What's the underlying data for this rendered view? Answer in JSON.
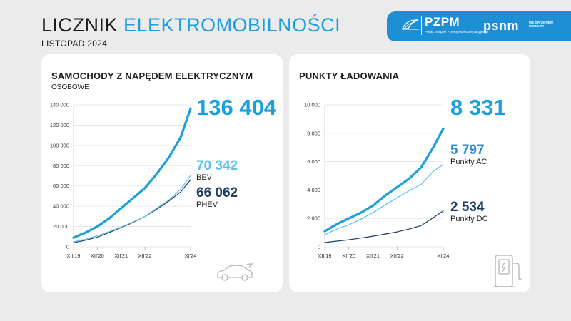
{
  "header": {
    "title_part1": "LICZNIK",
    "title_part2": "ELEKTROMOBILNOŚCI",
    "subtitle": "LISTOPAD 2024"
  },
  "logos": {
    "pzpm": {
      "name": "PZPM",
      "tagline": "Polski Związek Przemysłu Motoryzacyjnego"
    },
    "psnm": {
      "name": "psnm",
      "tagline": "WE DRIVE NEW MOBILITY"
    }
  },
  "colors": {
    "accent": "#1a9fde",
    "light": "#5cc2ec",
    "dark": "#1f3c66",
    "banner": "#1d8fd4"
  },
  "left_card": {
    "title": "SAMOCHODY Z NAPĘDEM ELEKTRYCZNYM",
    "subtitle": "OSOBOWE",
    "total_value": "136 404",
    "bev_value": "70 342",
    "bev_label": "BEV",
    "phev_value": "66 062",
    "phev_label": "PHEV",
    "icon": "electric-car-icon"
  },
  "right_card": {
    "title": "PUNKTY ŁADOWANIA",
    "total_value": "8 331",
    "ac_value": "5 797",
    "ac_label": "Punkty AC",
    "dc_value": "2 534",
    "dc_label": "Punkty DC",
    "icon": "charging-station-icon"
  },
  "chart_data": [
    {
      "type": "line",
      "title": "SAMOCHODY Z NAPĘDEM ELEKTRYCZNYM",
      "subtitle": "OSOBOWE",
      "ylim": [
        0,
        140000
      ],
      "yticks": [
        0,
        20000,
        40000,
        60000,
        80000,
        100000,
        120000,
        140000
      ],
      "ytick_labels": [
        "0",
        "20 000",
        "40 000",
        "60 000",
        "80 000",
        "100 000",
        "120 000",
        "140 000"
      ],
      "xticks": [
        0,
        12,
        24,
        36,
        59
      ],
      "xtick_labels": [
        "XII'19",
        "XII'20",
        "XII'21",
        "XII'22",
        "XI'24"
      ],
      "grid": true,
      "series": [
        {
          "name": "",
          "color": "#1a9fde",
          "width": 3.2,
          "points": [
            [
              0,
              9000
            ],
            [
              6,
              14000
            ],
            [
              12,
              20000
            ],
            [
              18,
              28000
            ],
            [
              24,
              38000
            ],
            [
              30,
              48000
            ],
            [
              36,
              58000
            ],
            [
              42,
              72000
            ],
            [
              48,
              88000
            ],
            [
              54,
              108000
            ],
            [
              59,
              136404
            ]
          ]
        },
        {
          "name": "BEV",
          "color": "#5cc2ec",
          "width": 1.2,
          "points": [
            [
              0,
              5000
            ],
            [
              6,
              7500
            ],
            [
              12,
              11000
            ],
            [
              18,
              15000
            ],
            [
              24,
              19500
            ],
            [
              30,
              24500
            ],
            [
              36,
              30000
            ],
            [
              42,
              38000
            ],
            [
              48,
              46000
            ],
            [
              54,
              57000
            ],
            [
              59,
              70342
            ]
          ]
        },
        {
          "name": "PHEV",
          "color": "#1f3c66",
          "width": 1.2,
          "points": [
            [
              0,
              4000
            ],
            [
              6,
              6500
            ],
            [
              12,
              9500
            ],
            [
              18,
              14000
            ],
            [
              24,
              19000
            ],
            [
              30,
              24000
            ],
            [
              36,
              30000
            ],
            [
              42,
              37000
            ],
            [
              48,
              45000
            ],
            [
              54,
              54000
            ],
            [
              59,
              66062
            ]
          ]
        }
      ]
    },
    {
      "type": "line",
      "title": "PUNKTY ŁADOWANIA",
      "ylim": [
        0,
        10000
      ],
      "yticks": [
        0,
        2000,
        4000,
        6000,
        8000,
        10000
      ],
      "ytick_labels": [
        "0",
        "2 000",
        "4 000",
        "6 000",
        "8 000",
        "10 000"
      ],
      "xticks": [
        0,
        12,
        24,
        36,
        59
      ],
      "xtick_labels": [
        "XII'19",
        "XII'20",
        "XII'21",
        "XII'22",
        "XI'24"
      ],
      "grid": true,
      "series": [
        {
          "name": "",
          "color": "#1a9fde",
          "width": 3.2,
          "points": [
            [
              0,
              1100
            ],
            [
              6,
              1600
            ],
            [
              12,
              2000
            ],
            [
              18,
              2400
            ],
            [
              24,
              2900
            ],
            [
              30,
              3600
            ],
            [
              36,
              4200
            ],
            [
              42,
              4800
            ],
            [
              48,
              5600
            ],
            [
              54,
              7000
            ],
            [
              59,
              8331
            ]
          ]
        },
        {
          "name": "Punkty AC",
          "color": "#5cc2ec",
          "width": 1.2,
          "points": [
            [
              0,
              850
            ],
            [
              6,
              1250
            ],
            [
              12,
              1550
            ],
            [
              18,
              1950
            ],
            [
              24,
              2400
            ],
            [
              30,
              2950
            ],
            [
              36,
              3450
            ],
            [
              42,
              3950
            ],
            [
              48,
              4400
            ],
            [
              54,
              5300
            ],
            [
              59,
              5797
            ]
          ]
        },
        {
          "name": "Punkty DC",
          "color": "#1f3c66",
          "width": 1.2,
          "points": [
            [
              0,
              300
            ],
            [
              6,
              400
            ],
            [
              12,
              500
            ],
            [
              18,
              620
            ],
            [
              24,
              750
            ],
            [
              30,
              900
            ],
            [
              36,
              1050
            ],
            [
              42,
              1250
            ],
            [
              48,
              1500
            ],
            [
              54,
              2050
            ],
            [
              59,
              2534
            ]
          ]
        }
      ]
    }
  ]
}
